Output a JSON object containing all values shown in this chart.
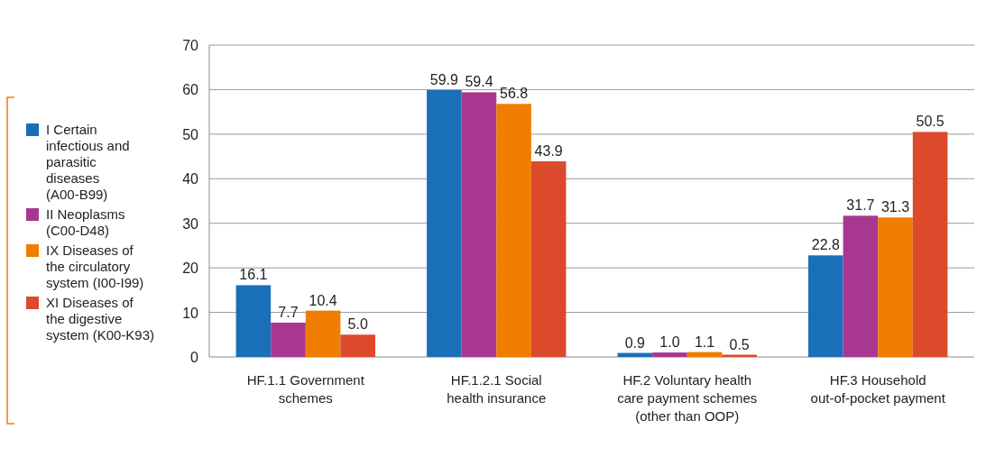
{
  "chart_data": {
    "type": "bar",
    "categories": [
      "HF.1.1 Government schemes",
      "HF.1.2.1 Social health insurance",
      "HF.2 Voluntary health care payment schemes (other than OOP)",
      "HF.3 Household out-of-pocket payment"
    ],
    "series": [
      {
        "name": "I Certain infectious and parasitic diseases (A00-B99)",
        "color": "#1a6fb9",
        "values": [
          16.1,
          59.9,
          0.9,
          22.8
        ],
        "value_labels": [
          "16.1",
          "59.9",
          "0.9",
          "22.8"
        ]
      },
      {
        "name": "II Neoplasms (C00-D48)",
        "color": "#a8388f",
        "values": [
          7.7,
          59.4,
          1,
          31.7
        ],
        "value_labels": [
          "7.7",
          "59.4",
          "1.0",
          "31.7"
        ]
      },
      {
        "name": "IX Diseases of the circulatory system (I00-I99)",
        "color": "#f07d00",
        "values": [
          10.4,
          56.8,
          1.1,
          31.3
        ],
        "value_labels": [
          "10.4",
          "56.8",
          "1.1",
          "31.3"
        ]
      },
      {
        "name": "XI Diseases of the digestive system (K00-K93)",
        "color": "#dc4a2b",
        "values": [
          5,
          43.9,
          0.5,
          50.5
        ],
        "value_labels": [
          "5.0",
          "43.9",
          "0.5",
          "50.5"
        ]
      }
    ],
    "ylim": [
      0,
      70
    ],
    "yticks": [
      0,
      10,
      20,
      30,
      40,
      50,
      60,
      70
    ],
    "grid": "y",
    "legend": "left"
  }
}
